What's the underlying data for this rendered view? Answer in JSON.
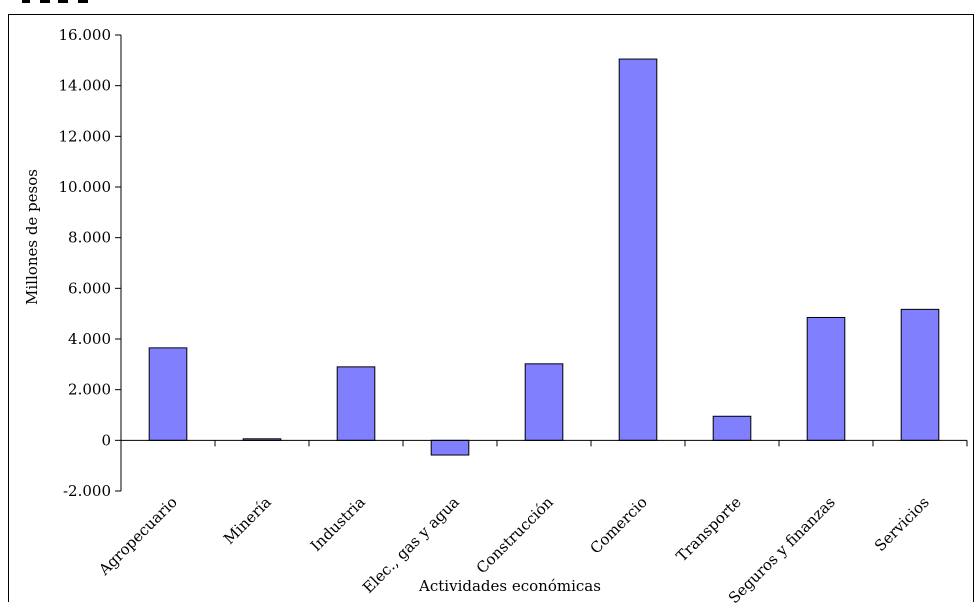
{
  "chart_data": {
    "type": "bar",
    "xlabel": "Actividades económicas",
    "ylabel": "Millones de pesos",
    "ylim": [
      -2000,
      16000
    ],
    "yticks": [
      -2000,
      0,
      2000,
      4000,
      6000,
      8000,
      10000,
      12000,
      14000,
      16000
    ],
    "ytick_labels": [
      "-2.000",
      "0",
      "2.000",
      "4.000",
      "6.000",
      "8.000",
      "10.000",
      "12.000",
      "14.000",
      "16.000"
    ],
    "categories": [
      "Agropecuario",
      "Minería",
      "Industria",
      "Elec., gas y agua",
      "Construcción",
      "Comercio",
      "Transporte",
      "Seguros y finanzas",
      "Servicios"
    ],
    "values": [
      3650,
      60,
      2900,
      -580,
      3020,
      15050,
      950,
      4850,
      5170
    ],
    "bar_color": "#8080ff",
    "grid": false,
    "legend": "none"
  }
}
